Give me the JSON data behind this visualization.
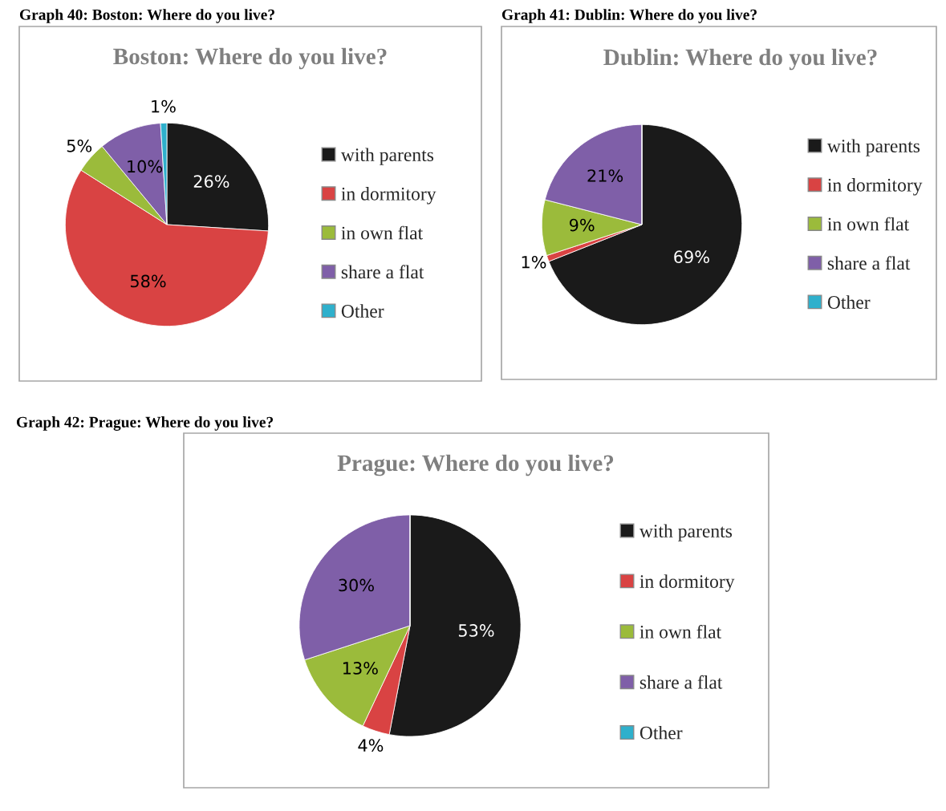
{
  "chart_data": [
    {
      "type": "pie",
      "title": "Boston: Where do you live?",
      "annotations": [
        "Graph 40: Boston: Where do you live?"
      ],
      "categories": [
        "with parents",
        "in dormitory",
        "in own flat",
        "share a flat",
        "Other"
      ],
      "values": [
        26,
        58,
        5,
        10,
        1
      ],
      "value_labels": [
        "26%",
        "58%",
        "5%",
        "10%",
        "1%"
      ],
      "colors": [
        "#1a1a1a",
        "#d94343",
        "#9bbb3b",
        "#7f5fa8",
        "#2fb0cc"
      ],
      "legend": "right"
    },
    {
      "type": "pie",
      "title": "Dublin: Where do you live?",
      "annotations": [
        "Graph 41: Dublin: Where do you live?"
      ],
      "categories": [
        "with parents",
        "in dormitory",
        "in own flat",
        "share a flat",
        "Other"
      ],
      "values": [
        69,
        1,
        9,
        21,
        0
      ],
      "value_labels": [
        "69%",
        "1%",
        "9%",
        "21%",
        null
      ],
      "colors": [
        "#1a1a1a",
        "#d94343",
        "#9bbb3b",
        "#7f5fa8",
        "#2fb0cc"
      ],
      "legend": "right"
    },
    {
      "type": "pie",
      "title": "Prague: Where do you live?",
      "annotations": [
        "Graph 42: Prague: Where do you live?"
      ],
      "categories": [
        "with parents",
        "in dormitory",
        "in own flat",
        "share a flat",
        "Other"
      ],
      "values": [
        53,
        4,
        13,
        30,
        0
      ],
      "value_labels": [
        "53%",
        "4%",
        "13%",
        "30%",
        null
      ],
      "colors": [
        "#1a1a1a",
        "#d94343",
        "#9bbb3b",
        "#7f5fa8",
        "#2fb0cc"
      ],
      "legend": "right"
    }
  ]
}
